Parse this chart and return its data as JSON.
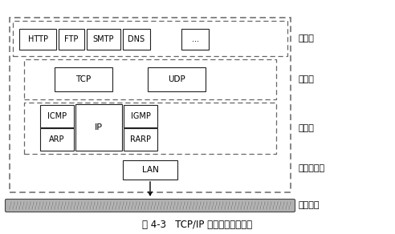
{
  "title": "图 4-3   TCP/IP 不同层次协议分布",
  "bg_color": "#ffffff",
  "app_protocols": [
    "HTTP",
    "FTP",
    "SMTP",
    "DNS",
    "..."
  ],
  "transport_protocols": [
    "TCP",
    "UDP"
  ],
  "network_top": [
    "ICMP",
    "IP",
    "IGMP"
  ],
  "network_bot": [
    "ARP",
    "RARP"
  ],
  "access_protocol": "LAN",
  "layer_labels": [
    "应用层",
    "传输层",
    "网络层",
    "网络访问层",
    "通信介质"
  ],
  "dashed_color": "#666666",
  "solid_color": "#222222",
  "text_color": "#000000",
  "font_size_proto": 7,
  "font_size_label": 8,
  "font_size_title": 8.5
}
